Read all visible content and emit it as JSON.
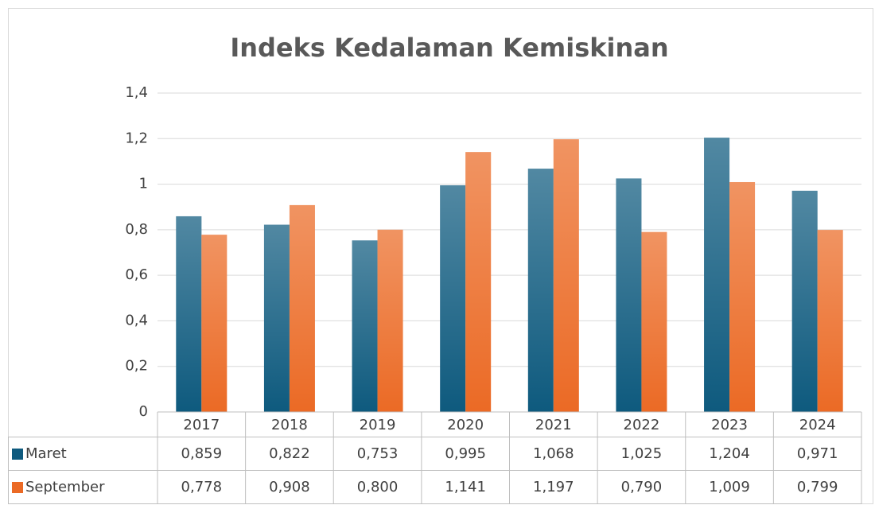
{
  "chart_data": {
    "type": "bar",
    "title": "Indeks Kedalaman Kemiskinan",
    "categories": [
      "2017",
      "2018",
      "2019",
      "2020",
      "2021",
      "2022",
      "2023",
      "2024"
    ],
    "series": [
      {
        "name": "Maret",
        "color": "#0e5a7e",
        "values": [
          0.859,
          0.822,
          0.753,
          0.995,
          1.068,
          1.025,
          1.204,
          0.971
        ],
        "value_labels": [
          "0,859",
          "0,822",
          "0,753",
          "0,995",
          "1,068",
          "1,025",
          "1,204",
          "0,971"
        ]
      },
      {
        "name": "September",
        "color": "#eb6a25",
        "values": [
          0.778,
          0.908,
          0.8,
          1.141,
          1.197,
          0.79,
          1.009,
          0.799
        ],
        "value_labels": [
          "0,778",
          "0,908",
          "0,800",
          "1,141",
          "1,197",
          "0,790",
          "1,009",
          "0,799"
        ]
      }
    ],
    "ylim": [
      0,
      1.4
    ],
    "yticks": [
      0,
      {
        "value": 0.2,
        "label": "0,2"
      },
      {
        "value": 0.4,
        "label": "0,4"
      },
      {
        "value": 0.6,
        "label": "0,6"
      },
      {
        "value": 0.8,
        "label": "0,8"
      },
      1,
      {
        "value": 1.2,
        "label": "1,2"
      },
      {
        "value": 1.4,
        "label": "1,4"
      }
    ],
    "grid": true
  }
}
